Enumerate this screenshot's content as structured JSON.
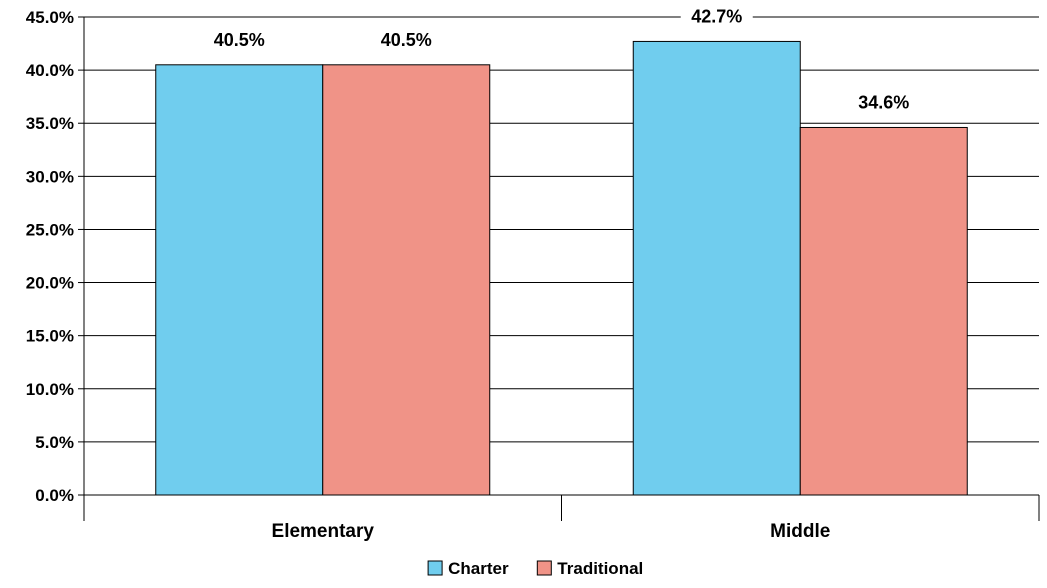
{
  "chart_data": {
    "type": "bar",
    "title": "",
    "xlabel": "",
    "ylabel": "",
    "categories": [
      "Elementary",
      "Middle"
    ],
    "series": [
      {
        "name": "Charter",
        "values": [
          40.5,
          42.7
        ],
        "color": "#70cdee"
      },
      {
        "name": "Traditional",
        "values": [
          40.5,
          34.6
        ],
        "color": "#f09387"
      }
    ],
    "data_labels": [
      [
        "40.5%",
        "42.7%"
      ],
      [
        "40.5%",
        "34.6%"
      ]
    ],
    "ylim": [
      0,
      45
    ],
    "y_ticks": [
      0,
      5,
      10,
      15,
      20,
      25,
      30,
      35,
      40,
      45
    ],
    "y_tick_labels": [
      "0.0%",
      "5.0%",
      "10.0%",
      "15.0%",
      "20.0%",
      "25.0%",
      "30.0%",
      "35.0%",
      "40.0%",
      "45.0%"
    ],
    "grid": true,
    "legend_position": "bottom-center"
  }
}
